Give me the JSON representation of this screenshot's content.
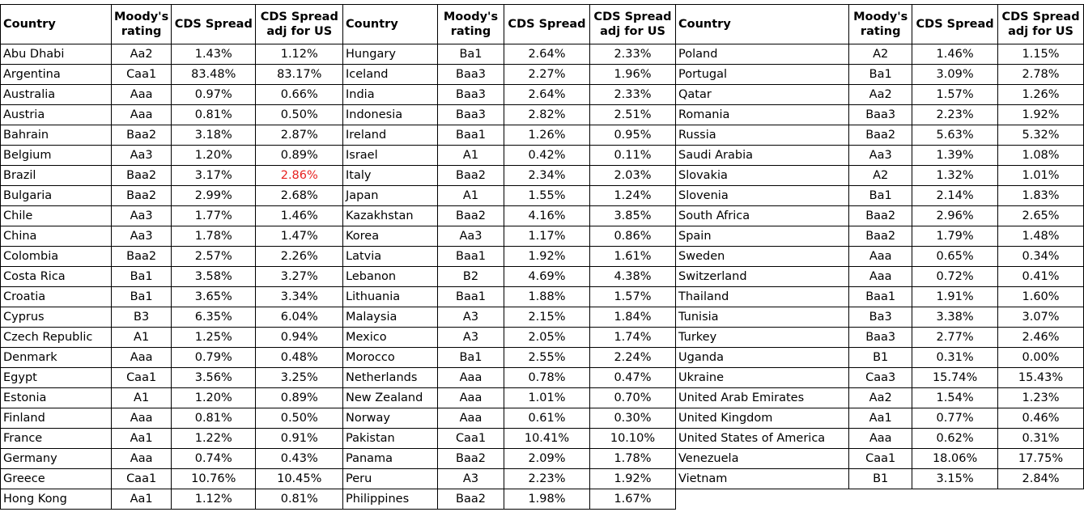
{
  "headers": {
    "country": "Country",
    "moodys_line1": "Moody's",
    "moodys_line2": "rating",
    "cds": "CDS Spread",
    "cds_adj_line1": "CDS Spread",
    "cds_adj_line2": "adj for US"
  },
  "highlight_color": "#e8211f",
  "blocks": [
    {
      "rows": [
        {
          "country": "Abu Dhabi",
          "rating": "Aa2",
          "cds": "1.43%",
          "adj": "1.12%"
        },
        {
          "country": "Argentina",
          "rating": "Caa1",
          "cds": "83.48%",
          "adj": "83.17%"
        },
        {
          "country": "Australia",
          "rating": "Aaa",
          "cds": "0.97%",
          "adj": "0.66%"
        },
        {
          "country": "Austria",
          "rating": "Aaa",
          "cds": "0.81%",
          "adj": "0.50%"
        },
        {
          "country": "Bahrain",
          "rating": "Baa2",
          "cds": "3.18%",
          "adj": "2.87%"
        },
        {
          "country": "Belgium",
          "rating": "Aa3",
          "cds": "1.20%",
          "adj": "0.89%"
        },
        {
          "country": "Brazil",
          "rating": "Baa2",
          "cds": "3.17%",
          "adj": "2.86%",
          "adj_highlight": true
        },
        {
          "country": "Bulgaria",
          "rating": "Baa2",
          "cds": "2.99%",
          "adj": "2.68%"
        },
        {
          "country": "Chile",
          "rating": "Aa3",
          "cds": "1.77%",
          "adj": "1.46%"
        },
        {
          "country": "China",
          "rating": "Aa3",
          "cds": "1.78%",
          "adj": "1.47%"
        },
        {
          "country": "Colombia",
          "rating": "Baa2",
          "cds": "2.57%",
          "adj": "2.26%"
        },
        {
          "country": "Costa Rica",
          "rating": "Ba1",
          "cds": "3.58%",
          "adj": "3.27%"
        },
        {
          "country": "Croatia",
          "rating": "Ba1",
          "cds": "3.65%",
          "adj": "3.34%"
        },
        {
          "country": "Cyprus",
          "rating": "B3",
          "cds": "6.35%",
          "adj": "6.04%"
        },
        {
          "country": "Czech Republic",
          "rating": "A1",
          "cds": "1.25%",
          "adj": "0.94%"
        },
        {
          "country": "Denmark",
          "rating": "Aaa",
          "cds": "0.79%",
          "adj": "0.48%"
        },
        {
          "country": "Egypt",
          "rating": "Caa1",
          "cds": "3.56%",
          "adj": "3.25%"
        },
        {
          "country": "Estonia",
          "rating": "A1",
          "cds": "1.20%",
          "adj": "0.89%"
        },
        {
          "country": "Finland",
          "rating": "Aaa",
          "cds": "0.81%",
          "adj": "0.50%"
        },
        {
          "country": "France",
          "rating": "Aa1",
          "cds": "1.22%",
          "adj": "0.91%"
        },
        {
          "country": "Germany",
          "rating": "Aaa",
          "cds": "0.74%",
          "adj": "0.43%"
        },
        {
          "country": "Greece",
          "rating": "Caa1",
          "cds": "10.76%",
          "adj": "10.45%"
        },
        {
          "country": "Hong Kong",
          "rating": "Aa1",
          "cds": "1.12%",
          "adj": "0.81%"
        }
      ]
    },
    {
      "rows": [
        {
          "country": "Hungary",
          "rating": "Ba1",
          "cds": "2.64%",
          "adj": "2.33%"
        },
        {
          "country": "Iceland",
          "rating": "Baa3",
          "cds": "2.27%",
          "adj": "1.96%"
        },
        {
          "country": "India",
          "rating": "Baa3",
          "cds": "2.64%",
          "adj": "2.33%"
        },
        {
          "country": "Indonesia",
          "rating": "Baa3",
          "cds": "2.82%",
          "adj": "2.51%"
        },
        {
          "country": "Ireland",
          "rating": "Baa1",
          "cds": "1.26%",
          "adj": "0.95%"
        },
        {
          "country": "Israel",
          "rating": "A1",
          "cds": "0.42%",
          "adj": "0.11%"
        },
        {
          "country": "Italy",
          "rating": "Baa2",
          "cds": "2.34%",
          "adj": "2.03%"
        },
        {
          "country": "Japan",
          "rating": "A1",
          "cds": "1.55%",
          "adj": "1.24%"
        },
        {
          "country": "Kazakhstan",
          "rating": "Baa2",
          "cds": "4.16%",
          "adj": "3.85%"
        },
        {
          "country": "Korea",
          "rating": "Aa3",
          "cds": "1.17%",
          "adj": "0.86%"
        },
        {
          "country": "Latvia",
          "rating": "Baa1",
          "cds": "1.92%",
          "adj": "1.61%"
        },
        {
          "country": "Lebanon",
          "rating": "B2",
          "cds": "4.69%",
          "adj": "4.38%"
        },
        {
          "country": "Lithuania",
          "rating": "Baa1",
          "cds": "1.88%",
          "adj": "1.57%"
        },
        {
          "country": "Malaysia",
          "rating": "A3",
          "cds": "2.15%",
          "adj": "1.84%"
        },
        {
          "country": "Mexico",
          "rating": "A3",
          "cds": "2.05%",
          "adj": "1.74%"
        },
        {
          "country": "Morocco",
          "rating": "Ba1",
          "cds": "2.55%",
          "adj": "2.24%"
        },
        {
          "country": "Netherlands",
          "rating": "Aaa",
          "cds": "0.78%",
          "adj": "0.47%"
        },
        {
          "country": "New Zealand",
          "rating": "Aaa",
          "cds": "1.01%",
          "adj": "0.70%"
        },
        {
          "country": "Norway",
          "rating": "Aaa",
          "cds": "0.61%",
          "adj": "0.30%"
        },
        {
          "country": "Pakistan",
          "rating": "Caa1",
          "cds": "10.41%",
          "adj": "10.10%"
        },
        {
          "country": "Panama",
          "rating": "Baa2",
          "cds": "2.09%",
          "adj": "1.78%"
        },
        {
          "country": "Peru",
          "rating": "A3",
          "cds": "2.23%",
          "adj": "1.92%"
        },
        {
          "country": "Philippines",
          "rating": "Baa2",
          "cds": "1.98%",
          "adj": "1.67%"
        }
      ]
    },
    {
      "rows": [
        {
          "country": "Poland",
          "rating": "A2",
          "cds": "1.46%",
          "adj": "1.15%"
        },
        {
          "country": "Portugal",
          "rating": "Ba1",
          "cds": "3.09%",
          "adj": "2.78%"
        },
        {
          "country": "Qatar",
          "rating": "Aa2",
          "cds": "1.57%",
          "adj": "1.26%"
        },
        {
          "country": "Romania",
          "rating": "Baa3",
          "cds": "2.23%",
          "adj": "1.92%"
        },
        {
          "country": "Russia",
          "rating": "Baa2",
          "cds": "5.63%",
          "adj": "5.32%"
        },
        {
          "country": "Saudi Arabia",
          "rating": "Aa3",
          "cds": "1.39%",
          "adj": "1.08%"
        },
        {
          "country": "Slovakia",
          "rating": "A2",
          "cds": "1.32%",
          "adj": "1.01%"
        },
        {
          "country": "Slovenia",
          "rating": "Ba1",
          "cds": "2.14%",
          "adj": "1.83%"
        },
        {
          "country": "South Africa",
          "rating": "Baa2",
          "cds": "2.96%",
          "adj": "2.65%"
        },
        {
          "country": "Spain",
          "rating": "Baa2",
          "cds": "1.79%",
          "adj": "1.48%"
        },
        {
          "country": "Sweden",
          "rating": "Aaa",
          "cds": "0.65%",
          "adj": "0.34%"
        },
        {
          "country": "Switzerland",
          "rating": "Aaa",
          "cds": "0.72%",
          "adj": "0.41%"
        },
        {
          "country": "Thailand",
          "rating": "Baa1",
          "cds": "1.91%",
          "adj": "1.60%"
        },
        {
          "country": "Tunisia",
          "rating": "Ba3",
          "cds": "3.38%",
          "adj": "3.07%"
        },
        {
          "country": "Turkey",
          "rating": "Baa3",
          "cds": "2.77%",
          "adj": "2.46%"
        },
        {
          "country": "Uganda",
          "rating": "B1",
          "cds": "0.31%",
          "adj": "0.00%"
        },
        {
          "country": "Ukraine",
          "rating": "Caa3",
          "cds": "15.74%",
          "adj": "15.43%"
        },
        {
          "country": "United Arab Emirates",
          "rating": "Aa2",
          "cds": "1.54%",
          "adj": "1.23%"
        },
        {
          "country": "United Kingdom",
          "rating": "Aa1",
          "cds": "0.77%",
          "adj": "0.46%"
        },
        {
          "country": "United States of America",
          "rating": "Aaa",
          "cds": "0.62%",
          "adj": "0.31%"
        },
        {
          "country": "Venezuela",
          "rating": "Caa1",
          "cds": "18.06%",
          "adj": "17.75%"
        },
        {
          "country": "Vietnam",
          "rating": "B1",
          "cds": "3.15%",
          "adj": "2.84%"
        }
      ]
    }
  ]
}
